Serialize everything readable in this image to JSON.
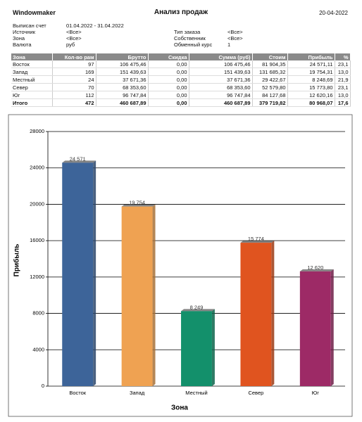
{
  "header": {
    "app": "Windowmaker",
    "title": "Анализ продаж",
    "date": "20-04-2022"
  },
  "filters": [
    {
      "label": "Выписан счет",
      "value": "01.04.2022 - 31.04.2022"
    },
    {
      "label": "Источник",
      "value": "<Все>"
    },
    {
      "label": "Зона",
      "value": "<Все>"
    },
    {
      "label": "Валюта",
      "value": "руб"
    },
    {
      "label": "Тип заказа",
      "value": "<Все>"
    },
    {
      "label": "Собственник",
      "value": "<Все>"
    },
    {
      "label": "Обменный курс",
      "value": "1"
    }
  ],
  "table": {
    "columns": [
      "Зона",
      "Кол-во рам",
      "Брутто",
      "Скидка",
      "Сумма (руб)",
      "Стоим",
      "Прибыль",
      "%"
    ],
    "rows": [
      [
        "Восток",
        "97",
        "106 475,46",
        "0,00",
        "106 475,46",
        "81 904,35",
        "24 571,11",
        "23,1"
      ],
      [
        "Запад",
        "169",
        "151 439,63",
        "0,00",
        "151 439,63",
        "131 685,32",
        "19 754,31",
        "13,0"
      ],
      [
        "Местный",
        "24",
        "37 671,36",
        "0,00",
        "37 671,36",
        "29 422,67",
        "8 248,69",
        "21,9"
      ],
      [
        "Север",
        "70",
        "68 353,60",
        "0,00",
        "68 353,60",
        "52 579,80",
        "15 773,80",
        "23,1"
      ],
      [
        "Юг",
        "112",
        "96 747,84",
        "0,00",
        "96 747,84",
        "84 127,68",
        "12 620,16",
        "13,0"
      ]
    ],
    "total": [
      "Итого",
      "472",
      "460 687,89",
      "0,00",
      "460 687,89",
      "379 719,82",
      "80 968,07",
      "17,6"
    ]
  },
  "chart_data": {
    "type": "bar",
    "x_label": "Зона",
    "y_label": "Прибыль",
    "categories": [
      "Восток",
      "Запад",
      "Местный",
      "Север",
      "Юг"
    ],
    "values": [
      24571,
      19754,
      8249,
      15774,
      12620
    ],
    "value_labels": [
      "24 571",
      "19 754",
      "8 249",
      "15 774",
      "12 620"
    ],
    "colors": [
      "#3d6499",
      "#efa252",
      "#13906b",
      "#e0541f",
      "#9d2a66"
    ],
    "ylim": [
      0,
      28000
    ],
    "yticks": [
      0,
      4000,
      8000,
      12000,
      16000,
      20000,
      24000,
      28000
    ],
    "grid": true
  }
}
